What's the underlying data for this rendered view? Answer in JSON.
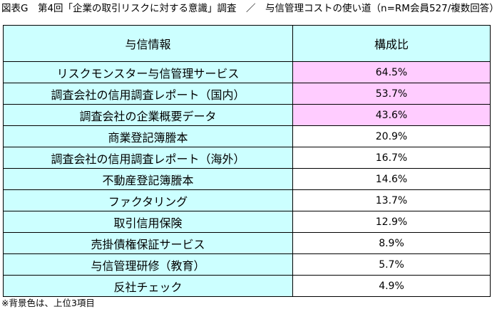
{
  "title": "図表G　第4回「企業の取引リスクに対する意識」調査　／　与信管理コストの使い道（n=RM会員527/複数回答）",
  "table": {
    "headers": [
      "与信情報",
      "構成比"
    ],
    "rows": [
      {
        "item": "リスクモンスター与信管理サービス",
        "value": "64.5%",
        "top3": true
      },
      {
        "item": "調査会社の信用調査レポート（国内）",
        "value": "53.7%",
        "top3": true
      },
      {
        "item": "調査会社の企業概要データ",
        "value": "43.6%",
        "top3": true
      },
      {
        "item": "商業登記簿謄本",
        "value": "20.9%",
        "top3": false
      },
      {
        "item": "調査会社の信用調査レポート（海外）",
        "value": "16.7%",
        "top3": false
      },
      {
        "item": "不動産登記簿謄本",
        "value": "14.6%",
        "top3": false
      },
      {
        "item": "ファクタリング",
        "value": "13.7%",
        "top3": false
      },
      {
        "item": "取引信用保険",
        "value": "12.9%",
        "top3": false
      },
      {
        "item": "売掛債権保証サービス",
        "value": "8.9%",
        "top3": false
      },
      {
        "item": "与信管理研修（教育）",
        "value": "5.7%",
        "top3": false
      },
      {
        "item": "反社チェック",
        "value": "4.9%",
        "top3": false
      }
    ]
  },
  "note": "※背景色は、上位3項目",
  "colors": {
    "header_bg": "#ccffff",
    "item_bg": "#ccffff",
    "top3_value_bg": "#ffccff",
    "value_bg": "#ffffff",
    "border": "#000000"
  }
}
